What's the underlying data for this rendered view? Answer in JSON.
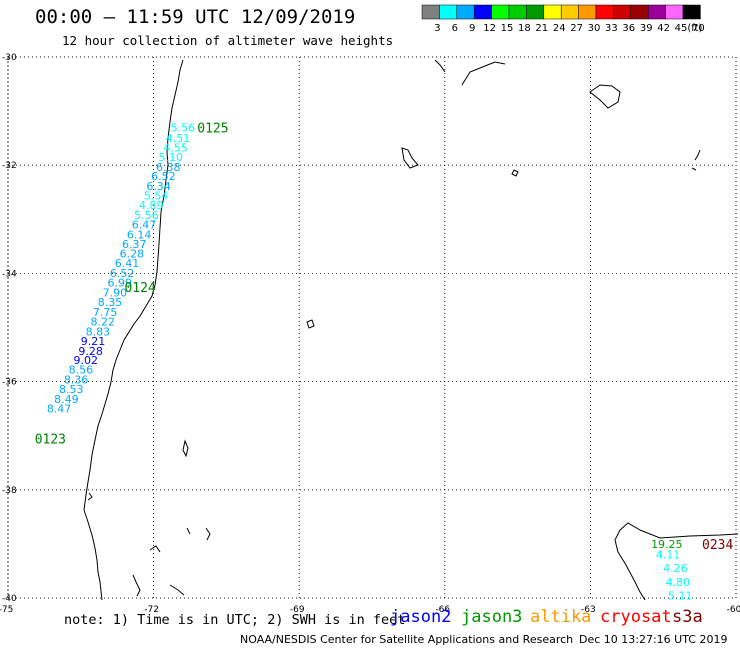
{
  "header": {
    "title": "00:00 – 11:59 UTC 12/09/2019",
    "subtitle": "12 hour collection of altimeter wave heights"
  },
  "legend": {
    "unit": "(ft)",
    "bins": [
      {
        "label": "3",
        "color": "#808080"
      },
      {
        "label": "6",
        "color": "#00ffff"
      },
      {
        "label": "9",
        "color": "#00aaff"
      },
      {
        "label": "12",
        "color": "#0000ff"
      },
      {
        "label": "15",
        "color": "#00ff00"
      },
      {
        "label": "18",
        "color": "#00cc00"
      },
      {
        "label": "21",
        "color": "#009900"
      },
      {
        "label": "24",
        "color": "#ffff00"
      },
      {
        "label": "27",
        "color": "#ffcc00"
      },
      {
        "label": "30",
        "color": "#ff9900"
      },
      {
        "label": "33",
        "color": "#ff0000"
      },
      {
        "label": "36",
        "color": "#cc0000"
      },
      {
        "label": "39",
        "color": "#990000"
      },
      {
        "label": "42",
        "color": "#990099"
      },
      {
        "label": "45",
        "color": "#ff66ff"
      },
      {
        "label": "70",
        "color": "#000000"
      }
    ]
  },
  "axes": {
    "lon_min": -75,
    "lon_max": -60,
    "lat_min": -40,
    "lat_max": -30,
    "lat_labels": [
      "-30",
      "-32",
      "-34",
      "-36",
      "-38",
      "-40"
    ],
    "lon_labels": [
      "-75",
      "-72",
      "-69",
      "-66",
      "-63",
      "-60"
    ],
    "lat_ticks": [
      -30,
      -32,
      -34,
      -36,
      -38,
      -40
    ],
    "lon_ticks": [
      -75,
      -72,
      -69,
      -66,
      -63,
      -60
    ],
    "grid": "dotted"
  },
  "passes": [
    {
      "time_label": "0125",
      "color": "#008000",
      "lon": -71.1,
      "lat": -31.3
    },
    {
      "time_label": "0124",
      "color": "#008000",
      "lon": -72.6,
      "lat": -34.25
    },
    {
      "time_label": "0123",
      "color": "#008000",
      "lon": -74.45,
      "lat": -37.05
    },
    {
      "time_label": "0234",
      "color": "#800000",
      "lon": -60.7,
      "lat": -39.0
    }
  ],
  "observations": [
    {
      "value": "5.56",
      "color": "#00ffff",
      "lon": -71.65,
      "lat": -31.3
    },
    {
      "value": "4.51",
      "color": "#00ffff",
      "lon": -71.75,
      "lat": -31.5
    },
    {
      "value": "4.55",
      "color": "#00ffff",
      "lon": -71.8,
      "lat": -31.67
    },
    {
      "value": "5.10",
      "color": "#00ffff",
      "lon": -71.9,
      "lat": -31.85
    },
    {
      "value": "6.38",
      "color": "#00aaff",
      "lon": -71.95,
      "lat": -32.03
    },
    {
      "value": "6.52",
      "color": "#00aaff",
      "lon": -72.05,
      "lat": -32.2
    },
    {
      "value": "6.34",
      "color": "#00aaff",
      "lon": -72.15,
      "lat": -32.38
    },
    {
      "value": "5.54",
      "color": "#00ffff",
      "lon": -72.2,
      "lat": -32.56
    },
    {
      "value": "4.89",
      "color": "#00ffff",
      "lon": -72.3,
      "lat": -32.74
    },
    {
      "value": "5.56",
      "color": "#00ffff",
      "lon": -72.4,
      "lat": -32.92
    },
    {
      "value": "6.47",
      "color": "#00aaff",
      "lon": -72.45,
      "lat": -33.1
    },
    {
      "value": "6.14",
      "color": "#00aaff",
      "lon": -72.55,
      "lat": -33.28
    },
    {
      "value": "6.37",
      "color": "#00aaff",
      "lon": -72.65,
      "lat": -33.46
    },
    {
      "value": "6.28",
      "color": "#00aaff",
      "lon": -72.7,
      "lat": -33.63
    },
    {
      "value": "6.41",
      "color": "#00aaff",
      "lon": -72.8,
      "lat": -33.81
    },
    {
      "value": "6.52",
      "color": "#00aaff",
      "lon": -72.9,
      "lat": -33.99
    },
    {
      "value": "6.99",
      "color": "#00aaff",
      "lon": -72.95,
      "lat": -34.17
    },
    {
      "value": "7.90",
      "color": "#00aaff",
      "lon": -73.05,
      "lat": -34.35
    },
    {
      "value": "8.35",
      "color": "#00aaff",
      "lon": -73.15,
      "lat": -34.53
    },
    {
      "value": "7.75",
      "color": "#00aaff",
      "lon": -73.25,
      "lat": -34.71
    },
    {
      "value": "8.22",
      "color": "#00aaff",
      "lon": -73.3,
      "lat": -34.89
    },
    {
      "value": "8.83",
      "color": "#00aaff",
      "lon": -73.4,
      "lat": -35.07
    },
    {
      "value": "9.21",
      "color": "#0000ff",
      "lon": -73.5,
      "lat": -35.25
    },
    {
      "value": "9.28",
      "color": "#0000ff",
      "lon": -73.55,
      "lat": -35.43
    },
    {
      "value": "9.02",
      "color": "#0000ff",
      "lon": -73.65,
      "lat": -35.6
    },
    {
      "value": "8.56",
      "color": "#00aaff",
      "lon": -73.75,
      "lat": -35.78
    },
    {
      "value": "8.36",
      "color": "#00aaff",
      "lon": -73.85,
      "lat": -35.96
    },
    {
      "value": "8.53",
      "color": "#00aaff",
      "lon": -73.95,
      "lat": -36.14
    },
    {
      "value": "8.49",
      "color": "#00aaff",
      "lon": -74.05,
      "lat": -36.32
    },
    {
      "value": "8.47",
      "color": "#00aaff",
      "lon": -74.2,
      "lat": -36.5
    },
    {
      "value": "19.25",
      "color": "#009900",
      "lon": -61.75,
      "lat": -39.0
    },
    {
      "value": "4.11",
      "color": "#00ffff",
      "lon": -61.65,
      "lat": -39.2
    },
    {
      "value": "4.26",
      "color": "#00ffff",
      "lon": -61.5,
      "lat": -39.45
    },
    {
      "value": "4.80",
      "color": "#00ffff",
      "lon": -61.45,
      "lat": -39.7
    },
    {
      "value": "5.11",
      "color": "#00ffff",
      "lon": -61.4,
      "lat": -39.95
    }
  ],
  "footer": {
    "note": "note: 1) Time is in UTC; 2) SWH is in feet",
    "satellites": [
      {
        "name": "jason2",
        "color": "#0000ff"
      },
      {
        "name": "jason3",
        "color": "#009900"
      },
      {
        "name": "altika",
        "color": "#ff9900"
      },
      {
        "name": "cryosat",
        "color": "#ff0000"
      },
      {
        "name": "s3a",
        "color": "#800000"
      }
    ],
    "credit": "NOAA/NESDIS Center for Satellite Applications and Research",
    "timestamp": "Dec 10 13:27:16 UTC 2019"
  }
}
